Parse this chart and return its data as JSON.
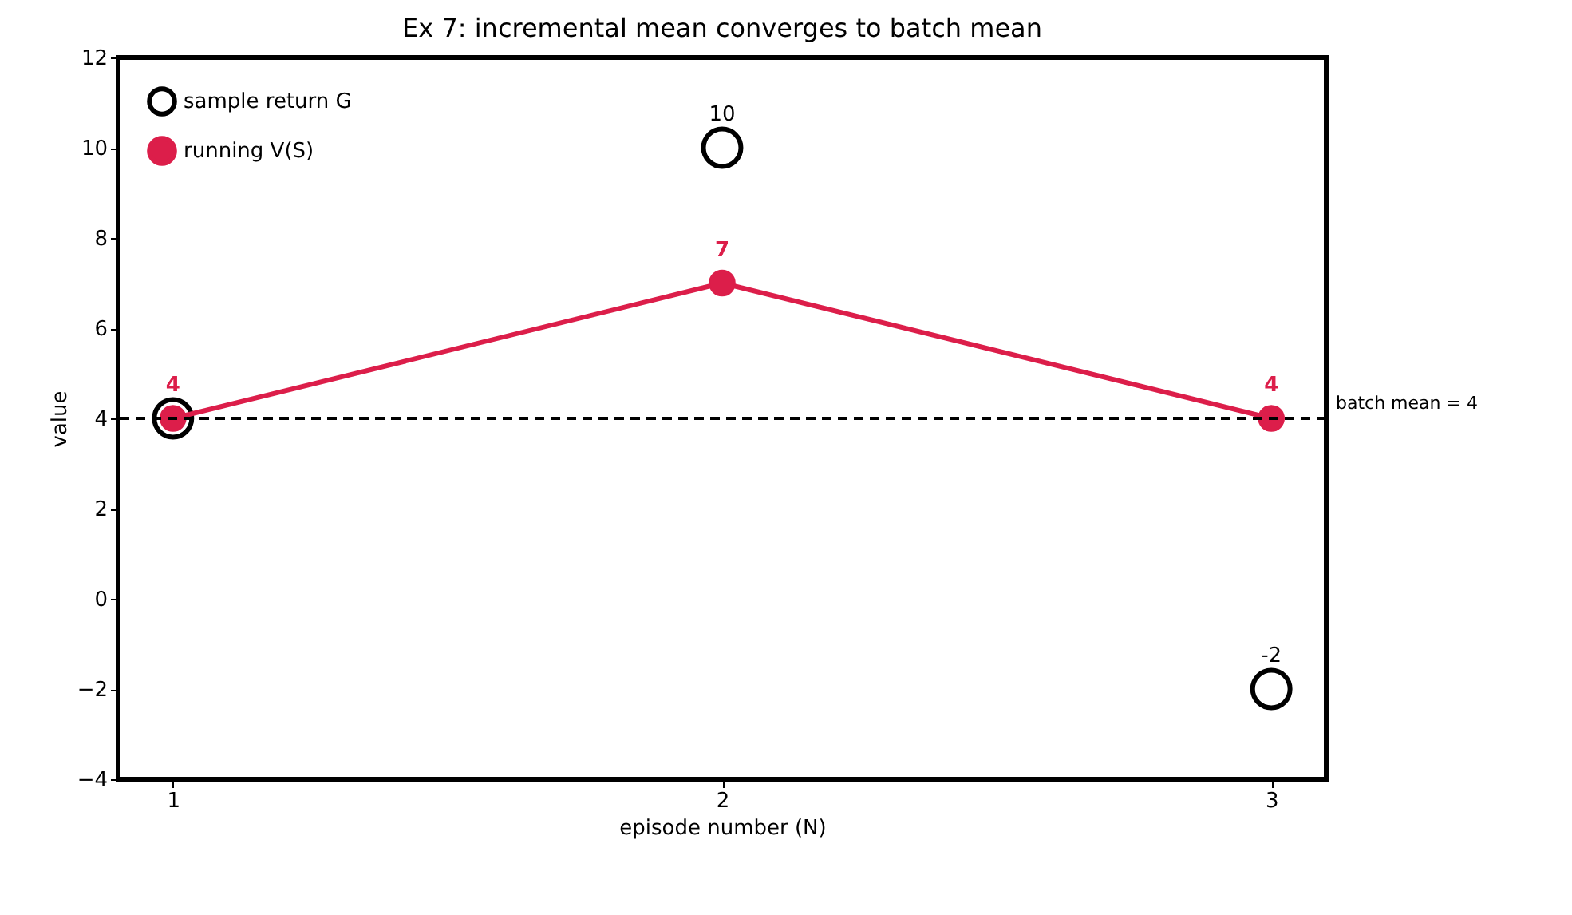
{
  "chart_data": {
    "type": "scatter",
    "title": "Ex 7: incremental mean converges to batch mean",
    "xlabel": "episode number (N)",
    "ylabel": "value",
    "x": [
      1,
      2,
      3
    ],
    "xlim": [
      0.9,
      3.1
    ],
    "xticks": [
      1,
      2,
      3
    ],
    "ylim": [
      -4,
      12
    ],
    "yticks": [
      -4,
      -2,
      0,
      2,
      4,
      6,
      8,
      10,
      12
    ],
    "series": [
      {
        "name": "sample return G",
        "color": "#000000",
        "values": [
          4,
          10,
          -2
        ],
        "value_labels": [
          null,
          "10",
          "-2"
        ]
      },
      {
        "name": "running V(S)",
        "type": "line",
        "color": "#dc1e4a",
        "marker": "circle",
        "values": [
          4,
          7,
          4
        ],
        "value_labels": [
          "4",
          "7",
          "4"
        ]
      }
    ],
    "ref_lines": [
      {
        "axis": "y",
        "value": 4,
        "label": "batch mean = 4",
        "color": "#000000",
        "line_style": "dashed"
      }
    ],
    "legend": "top left",
    "grid": false
  }
}
